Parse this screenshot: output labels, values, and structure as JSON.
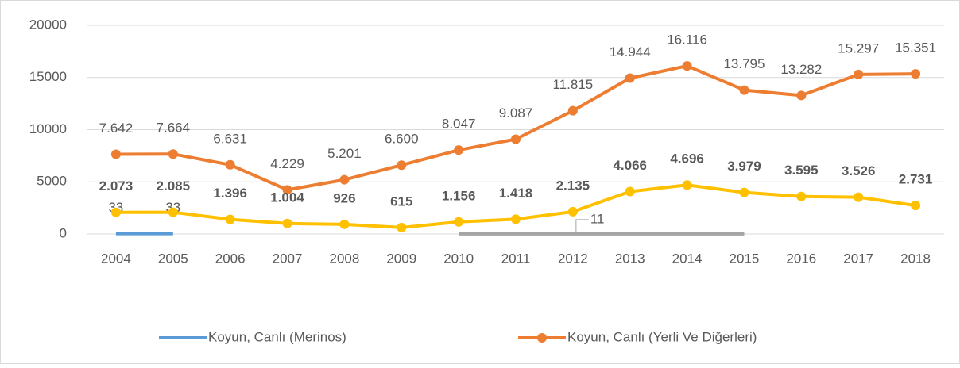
{
  "chart_data": {
    "type": "line",
    "categories": [
      "2004",
      "2005",
      "2006",
      "2007",
      "2008",
      "2009",
      "2010",
      "2011",
      "2012",
      "2013",
      "2014",
      "2015",
      "2016",
      "2017",
      "2018"
    ],
    "ylim": [
      0,
      20000
    ],
    "yticks": [
      0,
      5000,
      10000,
      15000,
      20000
    ],
    "grid": true,
    "legend": "bottom",
    "series": [
      {
        "name": "Koyun, Canlı (Merinos)",
        "color": "#5b9bd5",
        "markers": false,
        "label_color": "#00a0e0",
        "values": [
          33,
          33,
          null,
          null,
          null,
          null,
          null,
          null,
          null,
          null,
          null,
          null,
          null,
          null,
          null
        ],
        "value_labels": [
          "33",
          "33",
          null,
          null,
          null,
          null,
          null,
          null,
          null,
          null,
          null,
          null,
          null,
          null,
          null
        ]
      },
      {
        "name": "Koyun, Canlı (Yerli Ve Diğerleri)",
        "color": "#ed7d31",
        "markers": true,
        "label_color": "#ed7d31",
        "values": [
          7642,
          7664,
          6631,
          4229,
          5201,
          6600,
          8047,
          9087,
          11815,
          14944,
          16116,
          13795,
          13282,
          15297,
          15351
        ],
        "value_labels": [
          "7.642",
          "7.664",
          "6.631",
          "4.229",
          "5.201",
          "6.600",
          "8.047",
          "9.087",
          "11.815",
          "14.944",
          "16.116",
          "13.795",
          "13.282",
          "15.297",
          "15.351"
        ]
      },
      {
        "color": "#ffc000",
        "markers": true,
        "label_color": "#bf9000",
        "label_bold": true,
        "values": [
          2073,
          2085,
          1396,
          1004,
          926,
          615,
          1156,
          1418,
          2135,
          4066,
          4696,
          3979,
          3595,
          3526,
          2731
        ],
        "value_labels": [
          "2.073",
          "2.085",
          "1.396",
          "1.004",
          "926",
          "615",
          "1.156",
          "1.418",
          "2.135",
          "4.066",
          "4.696",
          "3.979",
          "3.595",
          "3.526",
          "2.731"
        ]
      },
      {
        "color": "#a5a5a5",
        "markers": false,
        "label_color": "#7f7f7f",
        "label_leader": true,
        "values": [
          null,
          null,
          null,
          null,
          null,
          null,
          11,
          11,
          11,
          11,
          11,
          11,
          null,
          null,
          null
        ],
        "value_labels": [
          null,
          null,
          null,
          null,
          null,
          null,
          null,
          null,
          "11",
          null,
          null,
          null,
          null,
          null,
          null
        ]
      }
    ]
  }
}
